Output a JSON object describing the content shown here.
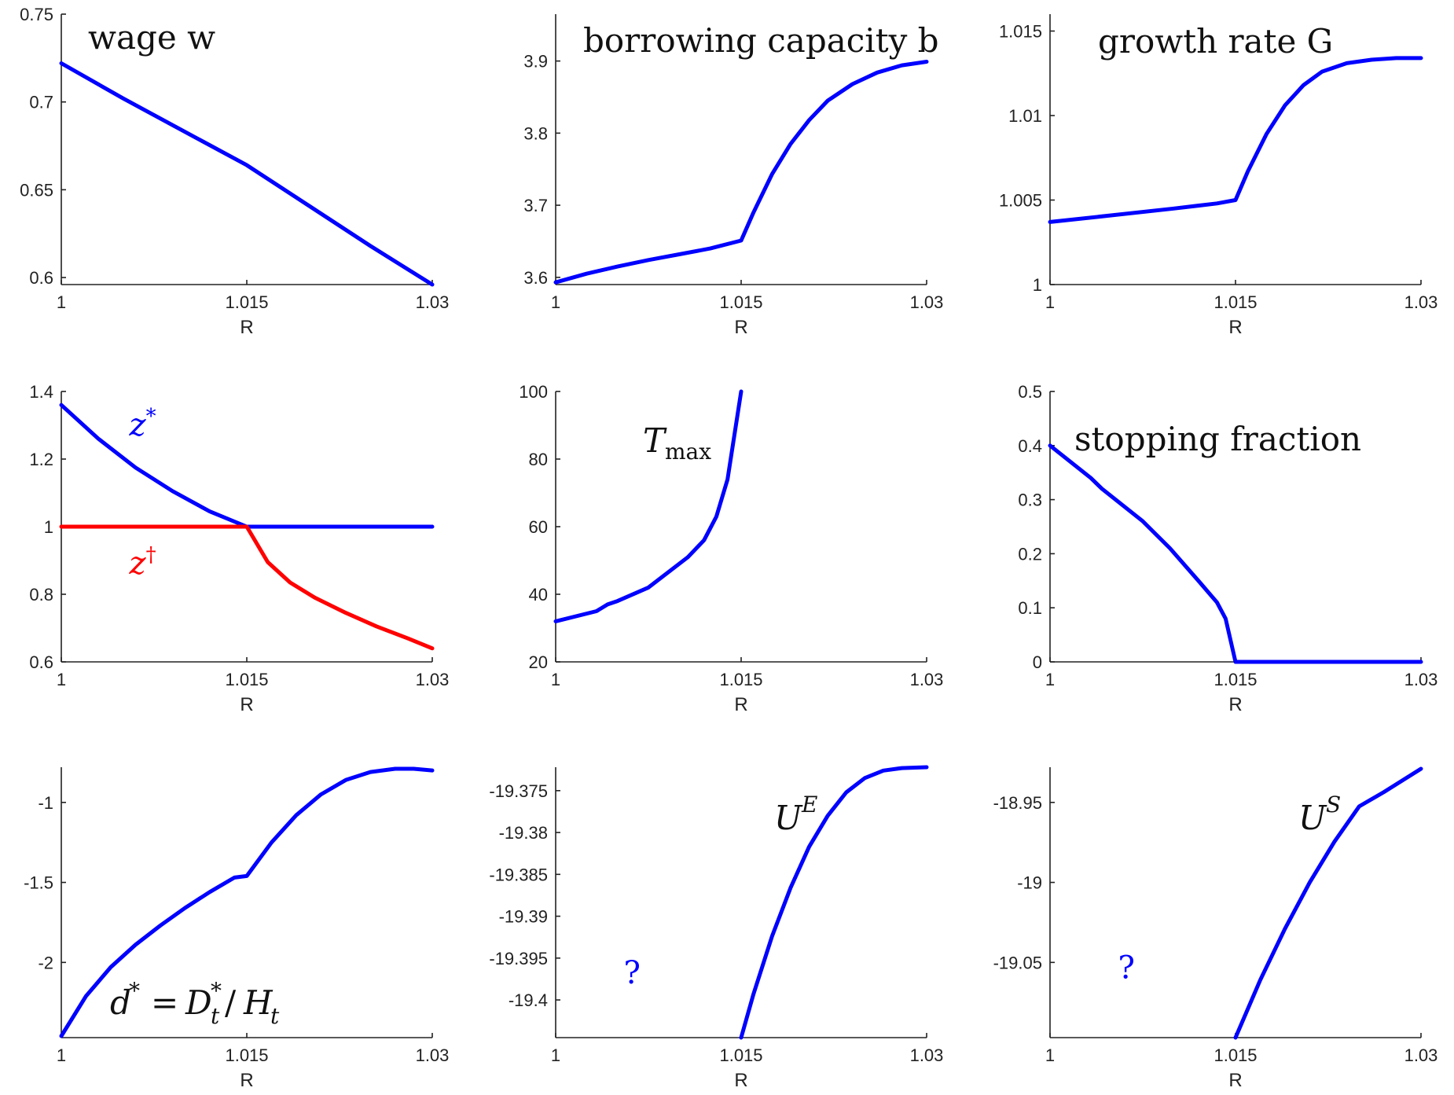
{
  "colors": {
    "blue": "#0000ff",
    "red": "#ff0000",
    "axis": "#222222"
  },
  "chart_data": [
    {
      "type": "line",
      "title": "wage w",
      "xlabel": "R",
      "xlim": [
        1,
        1.03
      ],
      "ylim": [
        0.596,
        0.75
      ],
      "xticks": [
        1,
        1.015,
        1.03
      ],
      "xticklabels": [
        "1",
        "1.015",
        "1.03"
      ],
      "yticks": [
        0.6,
        0.65,
        0.7,
        0.75
      ],
      "yticklabels": [
        "0.6",
        "0.65",
        "0.7",
        "0.75"
      ],
      "series": [
        {
          "color": "#0000ff",
          "x": [
            1,
            1.005,
            1.01,
            1.015,
            1.02,
            1.025,
            1.03
          ],
          "y": [
            0.722,
            0.702,
            0.683,
            0.664,
            0.641,
            0.618,
            0.596
          ]
        }
      ],
      "annotations": []
    },
    {
      "type": "line",
      "title": "borrowing capacity b",
      "xlabel": "R",
      "xlim": [
        1,
        1.03
      ],
      "ylim": [
        3.59,
        3.965
      ],
      "xticks": [
        1,
        1.015,
        1.03
      ],
      "xticklabels": [
        "1",
        "1.015",
        "1.03"
      ],
      "yticks": [
        3.6,
        3.7,
        3.8,
        3.9
      ],
      "yticklabels": [
        "3.6",
        "3.7",
        "3.8",
        "3.9"
      ],
      "series": [
        {
          "color": "#0000ff",
          "x": [
            1,
            1.0025,
            1.005,
            1.0075,
            1.01,
            1.0125,
            1.015,
            1.016,
            1.0175,
            1.019,
            1.0205,
            1.022,
            1.024,
            1.026,
            1.028,
            1.03
          ],
          "y": [
            3.593,
            3.605,
            3.615,
            3.624,
            3.632,
            3.64,
            3.651,
            3.69,
            3.743,
            3.785,
            3.818,
            3.845,
            3.868,
            3.884,
            3.894,
            3.899
          ]
        }
      ],
      "annotations": []
    },
    {
      "type": "line",
      "title": "growth rate G",
      "xlabel": "R",
      "xlim": [
        1,
        1.03
      ],
      "ylim": [
        1,
        1.016
      ],
      "xticks": [
        1,
        1.015,
        1.03
      ],
      "xticklabels": [
        "1",
        "1.015",
        "1.03"
      ],
      "yticks": [
        1,
        1.005,
        1.01,
        1.015
      ],
      "yticklabels": [
        "1",
        "1.005",
        "1.01",
        "1.015"
      ],
      "series": [
        {
          "color": "#0000ff",
          "x": [
            1,
            1.005,
            1.01,
            1.0135,
            1.015,
            1.016,
            1.0175,
            1.019,
            1.0205,
            1.022,
            1.024,
            1.026,
            1.028,
            1.03
          ],
          "y": [
            1.0037,
            1.0041,
            1.0045,
            1.0048,
            1.005,
            1.0067,
            1.0089,
            1.0106,
            1.0118,
            1.0126,
            1.0131,
            1.0133,
            1.0134,
            1.0134
          ]
        }
      ],
      "annotations": []
    },
    {
      "type": "line",
      "title": "",
      "xlabel": "R",
      "xlim": [
        1,
        1.03
      ],
      "ylim": [
        0.6,
        1.4
      ],
      "xticks": [
        1,
        1.015,
        1.03
      ],
      "xticklabels": [
        "1",
        "1.015",
        "1.03"
      ],
      "yticks": [
        0.6,
        0.8,
        1,
        1.2,
        1.4
      ],
      "yticklabels": [
        "0.6",
        "0.8",
        "1",
        "1.2",
        "1.4"
      ],
      "series": [
        {
          "name": "z*",
          "color": "#0000ff",
          "x": [
            1,
            1.003,
            1.006,
            1.009,
            1.012,
            1.015,
            1.03
          ],
          "y": [
            1.36,
            1.26,
            1.175,
            1.105,
            1.045,
            1.0,
            1.0
          ]
        },
        {
          "name": "z†",
          "color": "#ff0000",
          "x": [
            1,
            1.015,
            1.0167,
            1.0185,
            1.0205,
            1.023,
            1.0255,
            1.028,
            1.03
          ],
          "y": [
            1.0,
            1.0,
            0.895,
            0.835,
            0.79,
            0.745,
            0.705,
            0.67,
            0.64
          ]
        }
      ],
      "annotations": [
        {
          "text": "z*",
          "x": 1.0055,
          "y": 1.27,
          "color": "#0000ff"
        },
        {
          "text": "z†",
          "x": 1.0055,
          "y": 0.86,
          "color": "#ff0000"
        }
      ]
    },
    {
      "type": "line",
      "title": "T_max",
      "xlabel": "R",
      "xlim": [
        1,
        1.03
      ],
      "ylim": [
        20,
        100
      ],
      "xticks": [
        1,
        1.015,
        1.03
      ],
      "xticklabels": [
        "1",
        "1.015",
        "1.03"
      ],
      "yticks": [
        20,
        40,
        60,
        80,
        100
      ],
      "yticklabels": [
        "20",
        "40",
        "60",
        "80",
        "100"
      ],
      "series": [
        {
          "color": "#0000ff",
          "x": [
            1,
            1.0033,
            1.0042,
            1.005,
            1.0075,
            1.0107,
            1.012,
            1.013,
            1.0139,
            1.015
          ],
          "y": [
            32,
            35,
            37,
            38,
            42,
            51,
            56,
            63,
            74,
            100
          ]
        }
      ],
      "annotations": []
    },
    {
      "type": "line",
      "title": "stopping fraction",
      "xlabel": "R",
      "xlim": [
        1,
        1.03
      ],
      "ylim": [
        0,
        0.5
      ],
      "xticks": [
        1,
        1.015,
        1.03
      ],
      "xticklabels": [
        "1",
        "1.015",
        "1.03"
      ],
      "yticks": [
        0,
        0.1,
        0.2,
        0.3,
        0.4,
        0.5
      ],
      "yticklabels": [
        "0",
        "0.1",
        "0.2",
        "0.3",
        "0.4",
        "0.5"
      ],
      "series": [
        {
          "color": "#0000ff",
          "x": [
            1,
            1.0033,
            1.0042,
            1.0075,
            1.0097,
            1.012,
            1.0135,
            1.0142,
            1.015,
            1.03
          ],
          "y": [
            0.4,
            0.34,
            0.32,
            0.26,
            0.21,
            0.15,
            0.11,
            0.08,
            0.0,
            0.0
          ]
        }
      ],
      "annotations": []
    },
    {
      "type": "line",
      "title": "d* = D*_t / H_t",
      "xlabel": "R",
      "xlim": [
        1,
        1.03
      ],
      "ylim": [
        -2.47,
        -0.78
      ],
      "xticks": [
        1,
        1.015,
        1.03
      ],
      "xticklabels": [
        "1",
        "1.015",
        "1.03"
      ],
      "yticks": [
        -2,
        -1.5,
        -1
      ],
      "yticklabels": [
        "-2",
        "-1.5",
        "-1"
      ],
      "series": [
        {
          "color": "#0000ff",
          "x": [
            1,
            1.002,
            1.004,
            1.006,
            1.008,
            1.01,
            1.012,
            1.014,
            1.015,
            1.017,
            1.019,
            1.021,
            1.023,
            1.025,
            1.027,
            1.0285,
            1.03
          ],
          "y": [
            -2.46,
            -2.21,
            -2.03,
            -1.89,
            -1.77,
            -1.66,
            -1.56,
            -1.47,
            -1.46,
            -1.25,
            -1.08,
            -0.95,
            -0.86,
            -0.81,
            -0.79,
            -0.79,
            -0.8
          ]
        }
      ],
      "annotations": []
    },
    {
      "type": "line",
      "title": "U^E",
      "xlabel": "R",
      "xlim": [
        1,
        1.03
      ],
      "ylim": [
        -19.4045,
        -19.3722
      ],
      "xticks": [
        1,
        1.015,
        1.03
      ],
      "xticklabels": [
        "1",
        "1.015",
        "1.03"
      ],
      "yticks": [
        -19.4,
        -19.395,
        -19.39,
        -19.385,
        -19.38,
        -19.375
      ],
      "yticklabels": [
        "-19.4",
        "-19.395",
        "-19.39",
        "-19.385",
        "-19.38",
        "-19.375"
      ],
      "series": [
        {
          "color": "#0000ff",
          "x": [
            1.015,
            1.016,
            1.0175,
            1.019,
            1.0205,
            1.022,
            1.0235,
            1.025,
            1.0265,
            1.028,
            1.03
          ],
          "y": [
            -19.4045,
            -19.3993,
            -19.3924,
            -19.3866,
            -19.3817,
            -19.378,
            -19.3752,
            -19.3735,
            -19.3726,
            -19.3723,
            -19.3722
          ]
        }
      ],
      "annotations": [
        {
          "text": "?",
          "x": 1.0055,
          "y": -19.398,
          "color": "#0000ff"
        }
      ]
    },
    {
      "type": "line",
      "title": "U^S",
      "xlabel": "R",
      "xlim": [
        1,
        1.03
      ],
      "ylim": [
        -19.097,
        -18.928
      ],
      "xticks": [
        1,
        1.015,
        1.03
      ],
      "xticklabels": [
        "1",
        "1.015",
        "1.03"
      ],
      "yticks": [
        -19.05,
        -19,
        -18.95
      ],
      "yticklabels": [
        "-19.05",
        "-19",
        "-18.95"
      ],
      "series": [
        {
          "color": "#0000ff",
          "x": [
            1.015,
            1.017,
            1.019,
            1.021,
            1.023,
            1.025,
            1.027,
            1.03
          ],
          "y": [
            -19.097,
            -19.061,
            -19.029,
            -19.0,
            -18.9745,
            -18.9525,
            -18.9435,
            -18.929
          ]
        }
      ],
      "annotations": [
        {
          "text": "?",
          "x": 1.0055,
          "y": -19.06,
          "color": "#0000ff"
        }
      ]
    }
  ]
}
